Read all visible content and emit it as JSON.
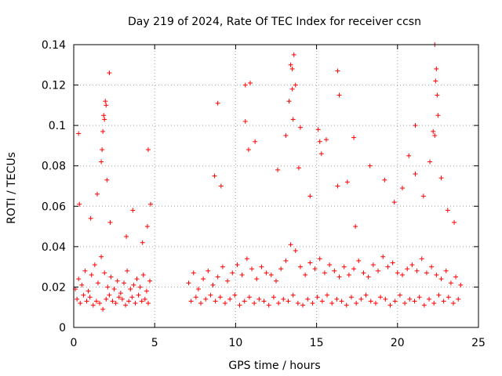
{
  "chart_data": {
    "type": "scatter",
    "title": "Day 219 of 2024, Rate Of TEC Index for receiver ccsn",
    "xlabel": "GPS time / hours",
    "ylabel": "ROTI / TECUs",
    "xlim": [
      0,
      25
    ],
    "ylim": [
      0,
      0.14
    ],
    "grid": true,
    "marker": "plus",
    "series_color": "#ff0000",
    "x_ticks": [
      {
        "value": 0,
        "label": "0"
      },
      {
        "value": 5,
        "label": "5"
      },
      {
        "value": 10,
        "label": "10"
      },
      {
        "value": 15,
        "label": "15"
      },
      {
        "value": 20,
        "label": "20"
      },
      {
        "value": 25,
        "label": "25"
      }
    ],
    "y_ticks": [
      {
        "value": 0,
        "label": "0"
      },
      {
        "value": 0.02,
        "label": "0.02"
      },
      {
        "value": 0.04,
        "label": "0.04"
      },
      {
        "value": 0.06,
        "label": "0.06"
      },
      {
        "value": 0.08,
        "label": "0.08"
      },
      {
        "value": 0.1,
        "label": "0.1"
      },
      {
        "value": 0.12,
        "label": "0.12"
      },
      {
        "value": 0.14,
        "label": "0.14"
      }
    ],
    "series": [
      {
        "name": "ROTI",
        "x": [
          0.1,
          0.3,
          0.5,
          0.7,
          0.9,
          1.1,
          1.3,
          1.5,
          1.7,
          1.9,
          2.1,
          2.3,
          2.5,
          2.7,
          2.9,
          3.1,
          3.3,
          3.5,
          3.7,
          3.9,
          4.1,
          4.3,
          4.5,
          4.7,
          0.2,
          0.4,
          0.6,
          0.8,
          1.0,
          1.2,
          1.4,
          1.6,
          1.8,
          2.0,
          2.2,
          2.4,
          2.6,
          2.8,
          3.0,
          3.2,
          3.4,
          3.6,
          3.8,
          4.0,
          4.2,
          4.4,
          4.6,
          0.35,
          1.05,
          1.45,
          1.75,
          1.85,
          1.95,
          2.05,
          2.25,
          3.25,
          3.65,
          4.25,
          4.55,
          4.75,
          1.9,
          1.8,
          2.0,
          1.7,
          2.2,
          0.3,
          4.6,
          7.1,
          7.4,
          7.7,
          8.0,
          8.3,
          8.6,
          8.9,
          9.2,
          9.5,
          9.8,
          10.1,
          10.4,
          10.7,
          11.0,
          11.3,
          11.6,
          11.9,
          12.2,
          12.5,
          12.8,
          13.1,
          13.4,
          13.7,
          14.0,
          14.3,
          14.6,
          14.9,
          15.2,
          15.5,
          15.8,
          16.1,
          16.4,
          16.7,
          17.0,
          17.3,
          17.6,
          17.9,
          18.2,
          18.5,
          18.8,
          19.1,
          19.4,
          19.7,
          20.0,
          20.3,
          20.6,
          20.9,
          21.2,
          21.5,
          21.8,
          22.1,
          22.4,
          22.7,
          23.0,
          23.3,
          23.6,
          23.9,
          7.25,
          7.55,
          7.85,
          8.15,
          8.45,
          8.75,
          9.05,
          9.35,
          9.65,
          9.95,
          10.25,
          10.55,
          10.85,
          11.15,
          11.45,
          11.75,
          12.05,
          12.35,
          12.65,
          12.95,
          13.25,
          13.55,
          13.85,
          14.15,
          14.45,
          14.75,
          15.05,
          15.35,
          15.65,
          15.95,
          16.25,
          16.55,
          16.85,
          17.15,
          17.45,
          17.75,
          18.05,
          18.35,
          18.65,
          18.95,
          19.25,
          19.55,
          19.85,
          20.15,
          20.45,
          20.75,
          21.05,
          21.35,
          21.65,
          21.95,
          22.25,
          22.55,
          22.85,
          23.15,
          23.45,
          23.75,
          8.7,
          9.1,
          10.6,
          10.8,
          11.2,
          12.6,
          13.1,
          13.3,
          13.5,
          13.7,
          13.9,
          14.6,
          15.1,
          15.3,
          15.6,
          16.3,
          16.9,
          17.4,
          18.3,
          19.2,
          19.8,
          20.3,
          20.7,
          21.1,
          21.6,
          22.0,
          22.3,
          22.5,
          22.7,
          23.1,
          23.5,
          8.9,
          10.6,
          10.9,
          13.4,
          13.6,
          14.0,
          16.3,
          16.4,
          15.2,
          17.3,
          21.1,
          22.3,
          22.35,
          22.4,
          22.45,
          22.2,
          13.5,
          13.55
        ],
        "y": [
          0.019,
          0.024,
          0.021,
          0.028,
          0.018,
          0.026,
          0.031,
          0.022,
          0.035,
          0.027,
          0.02,
          0.025,
          0.019,
          0.023,
          0.017,
          0.022,
          0.028,
          0.019,
          0.021,
          0.024,
          0.02,
          0.026,
          0.018,
          0.023,
          0.014,
          0.012,
          0.016,
          0.013,
          0.015,
          0.011,
          0.013,
          0.012,
          0.009,
          0.014,
          0.016,
          0.013,
          0.012,
          0.015,
          0.014,
          0.011,
          0.013,
          0.015,
          0.012,
          0.016,
          0.013,
          0.014,
          0.012,
          0.061,
          0.054,
          0.066,
          0.088,
          0.105,
          0.112,
          0.073,
          0.052,
          0.045,
          0.058,
          0.042,
          0.05,
          0.061,
          0.103,
          0.097,
          0.11,
          0.082,
          0.126,
          0.096,
          0.088,
          0.022,
          0.027,
          0.019,
          0.024,
          0.028,
          0.021,
          0.025,
          0.03,
          0.023,
          0.027,
          0.031,
          0.026,
          0.034,
          0.029,
          0.024,
          0.03,
          0.027,
          0.026,
          0.023,
          0.029,
          0.033,
          0.041,
          0.038,
          0.03,
          0.026,
          0.032,
          0.029,
          0.034,
          0.027,
          0.031,
          0.028,
          0.025,
          0.03,
          0.026,
          0.029,
          0.033,
          0.027,
          0.025,
          0.031,
          0.028,
          0.035,
          0.03,
          0.032,
          0.027,
          0.026,
          0.029,
          0.031,
          0.028,
          0.034,
          0.027,
          0.03,
          0.026,
          0.024,
          0.028,
          0.022,
          0.025,
          0.021,
          0.013,
          0.015,
          0.012,
          0.014,
          0.016,
          0.013,
          0.015,
          0.012,
          0.014,
          0.016,
          0.011,
          0.013,
          0.015,
          0.012,
          0.014,
          0.013,
          0.011,
          0.015,
          0.012,
          0.014,
          0.013,
          0.016,
          0.012,
          0.011,
          0.014,
          0.012,
          0.015,
          0.013,
          0.016,
          0.012,
          0.014,
          0.013,
          0.011,
          0.015,
          0.012,
          0.014,
          0.016,
          0.013,
          0.012,
          0.015,
          0.014,
          0.011,
          0.013,
          0.016,
          0.012,
          0.014,
          0.013,
          0.015,
          0.011,
          0.014,
          0.012,
          0.016,
          0.013,
          0.015,
          0.012,
          0.014,
          0.075,
          0.07,
          0.102,
          0.088,
          0.092,
          0.078,
          0.095,
          0.112,
          0.128,
          0.12,
          0.079,
          0.065,
          0.098,
          0.086,
          0.093,
          0.07,
          0.072,
          0.05,
          0.08,
          0.073,
          0.062,
          0.069,
          0.085,
          0.076,
          0.065,
          0.082,
          0.095,
          0.105,
          0.074,
          0.058,
          0.052,
          0.111,
          0.12,
          0.121,
          0.13,
          0.135,
          0.099,
          0.127,
          0.115,
          0.092,
          0.094,
          0.1,
          0.14,
          0.122,
          0.128,
          0.115,
          0.097,
          0.118,
          0.103
        ]
      }
    ]
  }
}
